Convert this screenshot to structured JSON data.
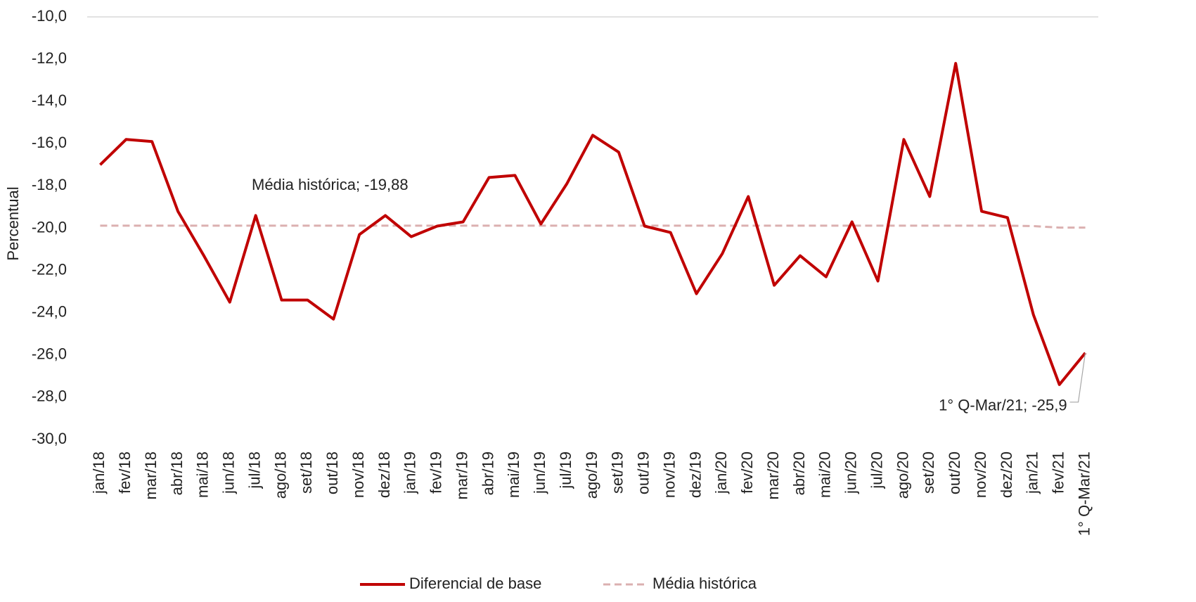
{
  "chart_data": {
    "type": "line",
    "y_label": "Percentual",
    "categories": [
      "jan/18",
      "fev/18",
      "mar/18",
      "abr/18",
      "mai/18",
      "jun/18",
      "jul/18",
      "ago/18",
      "set/18",
      "out/18",
      "nov/18",
      "dez/18",
      "jan/19",
      "fev/19",
      "mar/19",
      "abr/19",
      "mai/19",
      "jun/19",
      "jul/19",
      "ago/19",
      "set/19",
      "out/19",
      "nov/19",
      "dez/19",
      "jan/20",
      "fev/20",
      "mar/20",
      "abr/20",
      "mai/20",
      "jun/20",
      "jul/20",
      "ago/20",
      "set/20",
      "out/20",
      "nov/20",
      "dez/20",
      "jan/21",
      "fev/21",
      "1° Q-Mar/21"
    ],
    "series": [
      {
        "name": "Diferencial de base",
        "color": "#c00000",
        "dash": false,
        "values": [
          -17.0,
          -15.8,
          -15.9,
          -19.2,
          -21.3,
          -23.5,
          -19.4,
          -23.4,
          -23.4,
          -24.3,
          -20.3,
          -19.4,
          -20.4,
          -19.9,
          -19.7,
          -17.6,
          -17.5,
          -19.8,
          -17.9,
          -15.6,
          -16.4,
          -19.9,
          -20.2,
          -23.1,
          -21.2,
          -18.5,
          -22.7,
          -21.3,
          -22.3,
          -19.7,
          -22.5,
          -15.8,
          -18.5,
          -12.2,
          -19.2,
          -19.5,
          -24.1,
          -27.4,
          -25.9
        ]
      },
      {
        "name": "Média histórica",
        "color": "#dbb0b0",
        "dash": true,
        "values": [
          -19.88,
          -19.88,
          -19.88,
          -19.88,
          -19.88,
          -19.88,
          -19.88,
          -19.88,
          -19.88,
          -19.88,
          -19.88,
          -19.88,
          -19.88,
          -19.88,
          -19.88,
          -19.88,
          -19.88,
          -19.88,
          -19.88,
          -19.88,
          -19.88,
          -19.88,
          -19.88,
          -19.88,
          -19.88,
          -19.88,
          -19.88,
          -19.88,
          -19.88,
          -19.88,
          -19.88,
          -19.88,
          -19.88,
          -19.88,
          -19.88,
          -19.88,
          -19.9,
          -19.97,
          -19.97
        ]
      }
    ],
    "annotations": [
      {
        "text": "Média histórica; -19,88",
        "series": 1,
        "index": 7
      },
      {
        "text": "1° Q-Mar/21; -25,9",
        "series": 0,
        "index": 38
      }
    ],
    "ylim": [
      -30,
      -10
    ],
    "yticks": [
      {
        "value": -30,
        "label": "-30,0"
      },
      {
        "value": -28,
        "label": "-28,0"
      },
      {
        "value": -26,
        "label": "-26,0"
      },
      {
        "value": -24,
        "label": "-24,0"
      },
      {
        "value": -22,
        "label": "-22,0"
      },
      {
        "value": -20,
        "label": "-20,0"
      },
      {
        "value": -18,
        "label": "-18,0"
      },
      {
        "value": -16,
        "label": "-16,0"
      },
      {
        "value": -14,
        "label": "-14,0"
      },
      {
        "value": -12,
        "label": "-12,0"
      },
      {
        "value": -10,
        "label": "-10,0"
      }
    ],
    "legend": "bottom"
  }
}
